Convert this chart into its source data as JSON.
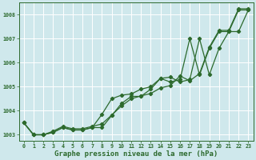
{
  "xlabel": "Graphe pression niveau de la mer (hPa)",
  "x": [
    0,
    1,
    2,
    3,
    4,
    5,
    6,
    7,
    8,
    9,
    10,
    11,
    12,
    13,
    14,
    15,
    16,
    17,
    18,
    19,
    20,
    21,
    22,
    23
  ],
  "line1": [
    1003.5,
    1003.0,
    1003.0,
    1003.1,
    1003.3,
    1003.2,
    1003.2,
    1003.3,
    1003.3,
    1003.8,
    1004.3,
    1004.6,
    1004.6,
    1004.9,
    1005.35,
    1005.4,
    1005.2,
    1005.3,
    1007.0,
    1005.5,
    1006.6,
    1007.3,
    1007.3,
    1008.2
  ],
  "line2": [
    1003.5,
    1003.0,
    1003.0,
    1003.1,
    1003.3,
    1003.2,
    1003.2,
    1003.3,
    1003.85,
    1004.5,
    1004.65,
    1004.7,
    1004.9,
    1005.0,
    1005.35,
    1005.2,
    1005.3,
    1007.0,
    1005.5,
    1006.6,
    1007.3,
    1007.3,
    1008.2,
    1008.2
  ],
  "line3": [
    1003.5,
    1003.0,
    1003.0,
    1003.15,
    1003.35,
    1003.25,
    1003.25,
    1003.35,
    1003.45,
    1003.82,
    1004.2,
    1004.5,
    1004.62,
    1004.72,
    1004.95,
    1005.05,
    1005.45,
    1005.25,
    1005.55,
    1006.65,
    1007.35,
    1007.35,
    1008.25,
    1008.25
  ],
  "background_color": "#cfe8ec",
  "plot_bg_color": "#cfe8ec",
  "grid_color": "#b0d8de",
  "line_color": "#2d6a2d",
  "ylim": [
    1002.75,
    1008.5
  ],
  "yticks": [
    1003,
    1004,
    1005,
    1006,
    1007,
    1008
  ],
  "xticks": [
    0,
    1,
    2,
    3,
    4,
    5,
    6,
    7,
    8,
    9,
    10,
    11,
    12,
    13,
    14,
    15,
    16,
    17,
    18,
    19,
    20,
    21,
    22,
    23
  ],
  "marker": "D",
  "markersize": 2.2,
  "linewidth": 0.9,
  "tick_fontsize": 4.8,
  "xlabel_fontsize": 6.5
}
